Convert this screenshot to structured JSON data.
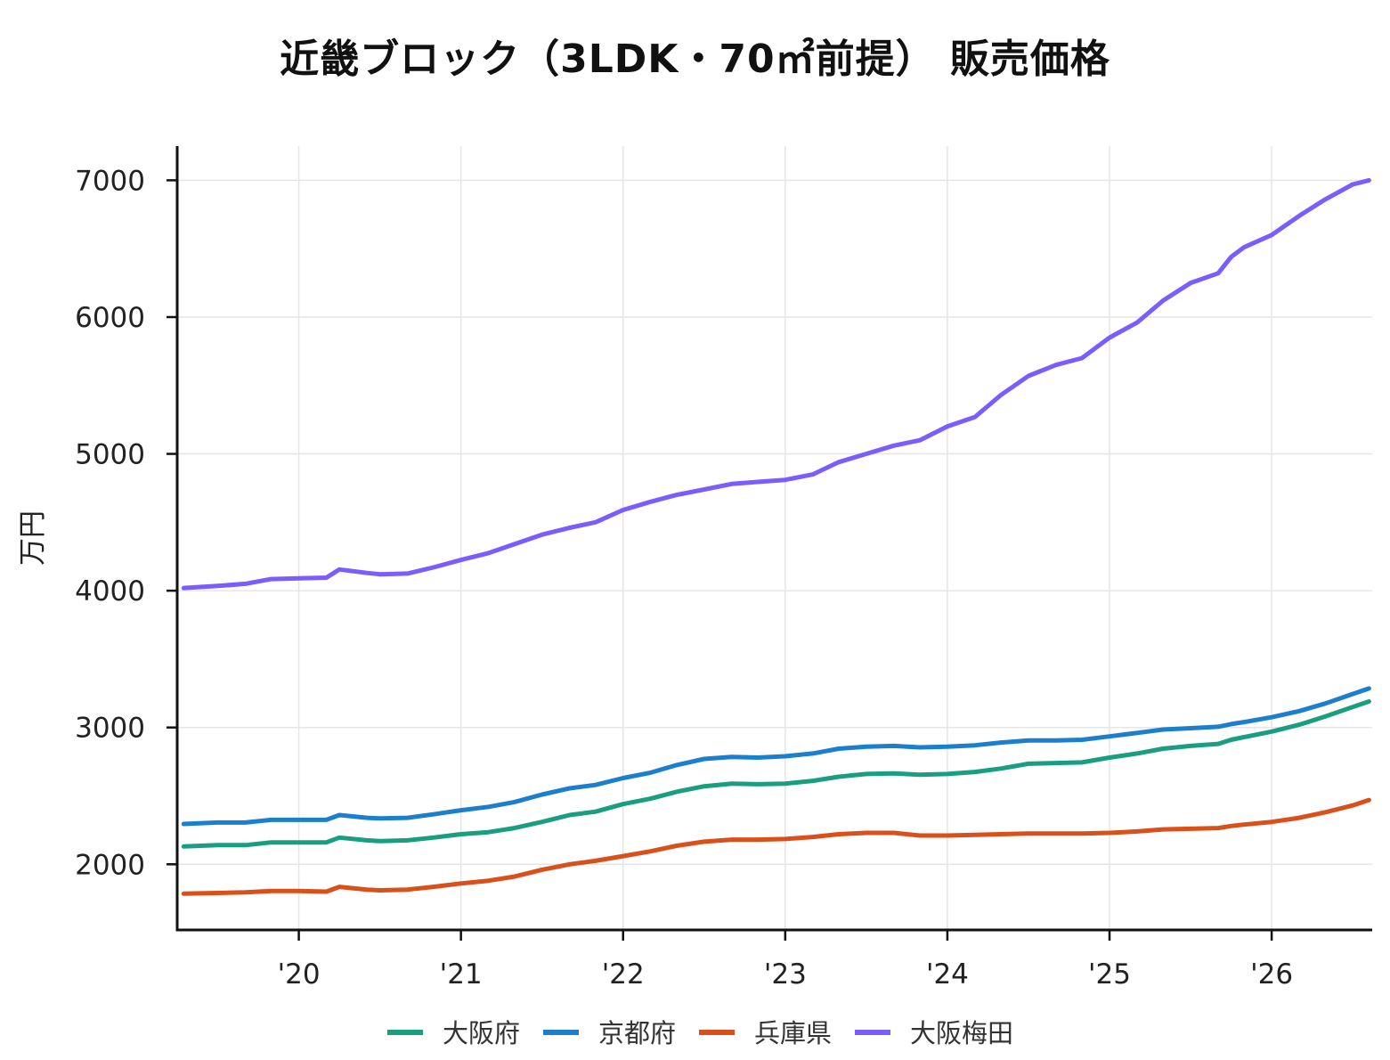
{
  "chart_data": {
    "type": "line",
    "title": "近畿ブロック（3LDK・70㎡前提） 販売価格",
    "ylabel": "万円",
    "xlabel": "",
    "xlim": [
      2019.25,
      2026.62
    ],
    "ylim": [
      1520,
      7250
    ],
    "yticks": [
      2000,
      3000,
      4000,
      5000,
      6000,
      7000
    ],
    "xticks": [
      {
        "value": 2020,
        "label": "'20"
      },
      {
        "value": 2021,
        "label": "'21"
      },
      {
        "value": 2022,
        "label": "'22"
      },
      {
        "value": 2023,
        "label": "'23"
      },
      {
        "value": 2024,
        "label": "'24"
      },
      {
        "value": 2025,
        "label": "'25"
      },
      {
        "value": 2026,
        "label": "'26"
      }
    ],
    "grid": true,
    "legend_position": "bottom",
    "series": [
      {
        "name": "大阪府",
        "color": "#1a9e80",
        "points": [
          [
            2019.29,
            2130
          ],
          [
            2019.5,
            2140
          ],
          [
            2019.67,
            2140
          ],
          [
            2019.83,
            2160
          ],
          [
            2020.0,
            2160
          ],
          [
            2020.17,
            2160
          ],
          [
            2020.25,
            2195
          ],
          [
            2020.42,
            2175
          ],
          [
            2020.5,
            2170
          ],
          [
            2020.67,
            2175
          ],
          [
            2020.83,
            2195
          ],
          [
            2021.0,
            2220
          ],
          [
            2021.17,
            2235
          ],
          [
            2021.33,
            2265
          ],
          [
            2021.5,
            2310
          ],
          [
            2021.67,
            2360
          ],
          [
            2021.83,
            2385
          ],
          [
            2022.0,
            2440
          ],
          [
            2022.17,
            2480
          ],
          [
            2022.33,
            2530
          ],
          [
            2022.5,
            2570
          ],
          [
            2022.67,
            2590
          ],
          [
            2022.83,
            2585
          ],
          [
            2023.0,
            2590
          ],
          [
            2023.17,
            2610
          ],
          [
            2023.33,
            2640
          ],
          [
            2023.5,
            2660
          ],
          [
            2023.67,
            2665
          ],
          [
            2023.83,
            2655
          ],
          [
            2024.0,
            2660
          ],
          [
            2024.17,
            2675
          ],
          [
            2024.33,
            2700
          ],
          [
            2024.5,
            2735
          ],
          [
            2024.67,
            2740
          ],
          [
            2024.83,
            2745
          ],
          [
            2025.0,
            2780
          ],
          [
            2025.17,
            2810
          ],
          [
            2025.33,
            2845
          ],
          [
            2025.5,
            2865
          ],
          [
            2025.67,
            2880
          ],
          [
            2025.75,
            2910
          ],
          [
            2025.83,
            2930
          ],
          [
            2026.0,
            2970
          ],
          [
            2026.17,
            3020
          ],
          [
            2026.33,
            3080
          ],
          [
            2026.5,
            3150
          ],
          [
            2026.6,
            3190
          ]
        ]
      },
      {
        "name": "京都府",
        "color": "#1c7fce",
        "points": [
          [
            2019.29,
            2295
          ],
          [
            2019.5,
            2305
          ],
          [
            2019.67,
            2305
          ],
          [
            2019.83,
            2325
          ],
          [
            2020.0,
            2325
          ],
          [
            2020.17,
            2325
          ],
          [
            2020.25,
            2360
          ],
          [
            2020.42,
            2340
          ],
          [
            2020.5,
            2335
          ],
          [
            2020.67,
            2340
          ],
          [
            2020.83,
            2365
          ],
          [
            2021.0,
            2395
          ],
          [
            2021.17,
            2420
          ],
          [
            2021.33,
            2455
          ],
          [
            2021.5,
            2510
          ],
          [
            2021.67,
            2555
          ],
          [
            2021.83,
            2580
          ],
          [
            2022.0,
            2630
          ],
          [
            2022.17,
            2670
          ],
          [
            2022.33,
            2725
          ],
          [
            2022.5,
            2770
          ],
          [
            2022.67,
            2785
          ],
          [
            2022.83,
            2780
          ],
          [
            2023.0,
            2790
          ],
          [
            2023.17,
            2810
          ],
          [
            2023.33,
            2845
          ],
          [
            2023.5,
            2860
          ],
          [
            2023.67,
            2865
          ],
          [
            2023.83,
            2855
          ],
          [
            2024.0,
            2860
          ],
          [
            2024.17,
            2870
          ],
          [
            2024.33,
            2890
          ],
          [
            2024.5,
            2905
          ],
          [
            2024.67,
            2905
          ],
          [
            2024.83,
            2910
          ],
          [
            2025.0,
            2935
          ],
          [
            2025.17,
            2960
          ],
          [
            2025.33,
            2985
          ],
          [
            2025.5,
            2995
          ],
          [
            2025.67,
            3005
          ],
          [
            2025.75,
            3025
          ],
          [
            2025.83,
            3040
          ],
          [
            2026.0,
            3075
          ],
          [
            2026.17,
            3120
          ],
          [
            2026.33,
            3175
          ],
          [
            2026.5,
            3245
          ],
          [
            2026.6,
            3285
          ]
        ]
      },
      {
        "name": "兵庫県",
        "color": "#d9501b",
        "points": [
          [
            2019.29,
            1785
          ],
          [
            2019.5,
            1790
          ],
          [
            2019.67,
            1795
          ],
          [
            2019.83,
            1805
          ],
          [
            2020.0,
            1805
          ],
          [
            2020.17,
            1800
          ],
          [
            2020.25,
            1835
          ],
          [
            2020.42,
            1815
          ],
          [
            2020.5,
            1810
          ],
          [
            2020.67,
            1815
          ],
          [
            2020.83,
            1835
          ],
          [
            2021.0,
            1860
          ],
          [
            2021.17,
            1880
          ],
          [
            2021.33,
            1910
          ],
          [
            2021.5,
            1960
          ],
          [
            2021.67,
            2000
          ],
          [
            2021.83,
            2025
          ],
          [
            2022.0,
            2060
          ],
          [
            2022.17,
            2095
          ],
          [
            2022.33,
            2135
          ],
          [
            2022.5,
            2165
          ],
          [
            2022.67,
            2180
          ],
          [
            2022.83,
            2180
          ],
          [
            2023.0,
            2185
          ],
          [
            2023.17,
            2200
          ],
          [
            2023.33,
            2220
          ],
          [
            2023.5,
            2230
          ],
          [
            2023.67,
            2230
          ],
          [
            2023.83,
            2210
          ],
          [
            2024.0,
            2210
          ],
          [
            2024.17,
            2215
          ],
          [
            2024.33,
            2220
          ],
          [
            2024.5,
            2225
          ],
          [
            2024.67,
            2225
          ],
          [
            2024.83,
            2225
          ],
          [
            2025.0,
            2230
          ],
          [
            2025.17,
            2240
          ],
          [
            2025.33,
            2255
          ],
          [
            2025.5,
            2260
          ],
          [
            2025.67,
            2265
          ],
          [
            2025.75,
            2280
          ],
          [
            2025.83,
            2290
          ],
          [
            2026.0,
            2310
          ],
          [
            2026.17,
            2340
          ],
          [
            2026.33,
            2380
          ],
          [
            2026.5,
            2430
          ],
          [
            2026.6,
            2470
          ]
        ]
      },
      {
        "name": "大阪梅田",
        "color": "#7b5cff",
        "points": [
          [
            2019.29,
            4020
          ],
          [
            2019.5,
            4035
          ],
          [
            2019.67,
            4050
          ],
          [
            2019.83,
            4085
          ],
          [
            2020.0,
            4090
          ],
          [
            2020.17,
            4095
          ],
          [
            2020.25,
            4155
          ],
          [
            2020.42,
            4130
          ],
          [
            2020.5,
            4120
          ],
          [
            2020.67,
            4125
          ],
          [
            2020.83,
            4170
          ],
          [
            2021.0,
            4225
          ],
          [
            2021.17,
            4275
          ],
          [
            2021.33,
            4340
          ],
          [
            2021.5,
            4410
          ],
          [
            2021.67,
            4460
          ],
          [
            2021.83,
            4500
          ],
          [
            2022.0,
            4590
          ],
          [
            2022.17,
            4650
          ],
          [
            2022.33,
            4700
          ],
          [
            2022.5,
            4740
          ],
          [
            2022.67,
            4780
          ],
          [
            2022.83,
            4795
          ],
          [
            2023.0,
            4810
          ],
          [
            2023.17,
            4850
          ],
          [
            2023.33,
            4940
          ],
          [
            2023.5,
            5000
          ],
          [
            2023.67,
            5060
          ],
          [
            2023.83,
            5100
          ],
          [
            2024.0,
            5200
          ],
          [
            2024.17,
            5270
          ],
          [
            2024.33,
            5430
          ],
          [
            2024.5,
            5570
          ],
          [
            2024.67,
            5650
          ],
          [
            2024.83,
            5700
          ],
          [
            2025.0,
            5850
          ],
          [
            2025.17,
            5960
          ],
          [
            2025.33,
            6120
          ],
          [
            2025.5,
            6250
          ],
          [
            2025.67,
            6320
          ],
          [
            2025.75,
            6440
          ],
          [
            2025.83,
            6510
          ],
          [
            2026.0,
            6600
          ],
          [
            2026.17,
            6740
          ],
          [
            2026.33,
            6860
          ],
          [
            2026.5,
            6970
          ],
          [
            2026.6,
            7000
          ]
        ]
      }
    ]
  }
}
